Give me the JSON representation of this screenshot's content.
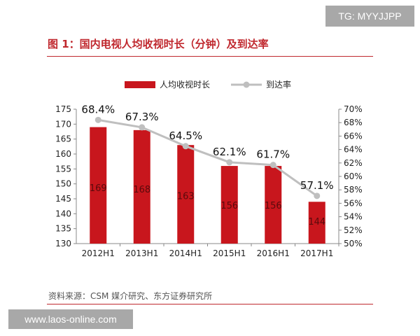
{
  "badge_text": "TG: MYYJJPP",
  "figure_title": "图 1：国内电视人均收视时长（分钟）及到达率",
  "source_note": "资料来源：CSM 媒介研究、东方证券研究所",
  "watermark_text": "www.laos-online.com",
  "colors": {
    "bar": "#c8161d",
    "line": "#bfbfbf",
    "title": "#c0282e"
  },
  "chart_data": {
    "type": "bar",
    "categories": [
      "2012H1",
      "2013H1",
      "2014H1",
      "2015H1",
      "2016H1",
      "2017H1"
    ],
    "series": [
      {
        "name": "人均收视时长",
        "type": "bar",
        "axis": "left",
        "values": [
          169,
          168,
          163,
          156,
          156,
          144
        ],
        "labels": [
          "169",
          "168",
          "163",
          "156",
          "156",
          "144"
        ]
      },
      {
        "name": "到达率",
        "type": "line",
        "axis": "right",
        "values": [
          68.4,
          67.3,
          64.5,
          62.1,
          61.7,
          57.1
        ],
        "labels": [
          "68.4%",
          "67.3%",
          "64.5%",
          "62.1%",
          "61.7%",
          "57.1%"
        ]
      }
    ],
    "y_left": {
      "min": 130,
      "max": 175,
      "ticks": [
        "130",
        "135",
        "140",
        "145",
        "150",
        "155",
        "160",
        "165",
        "170",
        "175"
      ]
    },
    "y_right": {
      "min": 50,
      "max": 70,
      "ticks": [
        "50%",
        "52%",
        "54%",
        "56%",
        "58%",
        "60%",
        "62%",
        "64%",
        "66%",
        "68%",
        "70%"
      ]
    },
    "legend_position": "top-center",
    "grid": false
  }
}
